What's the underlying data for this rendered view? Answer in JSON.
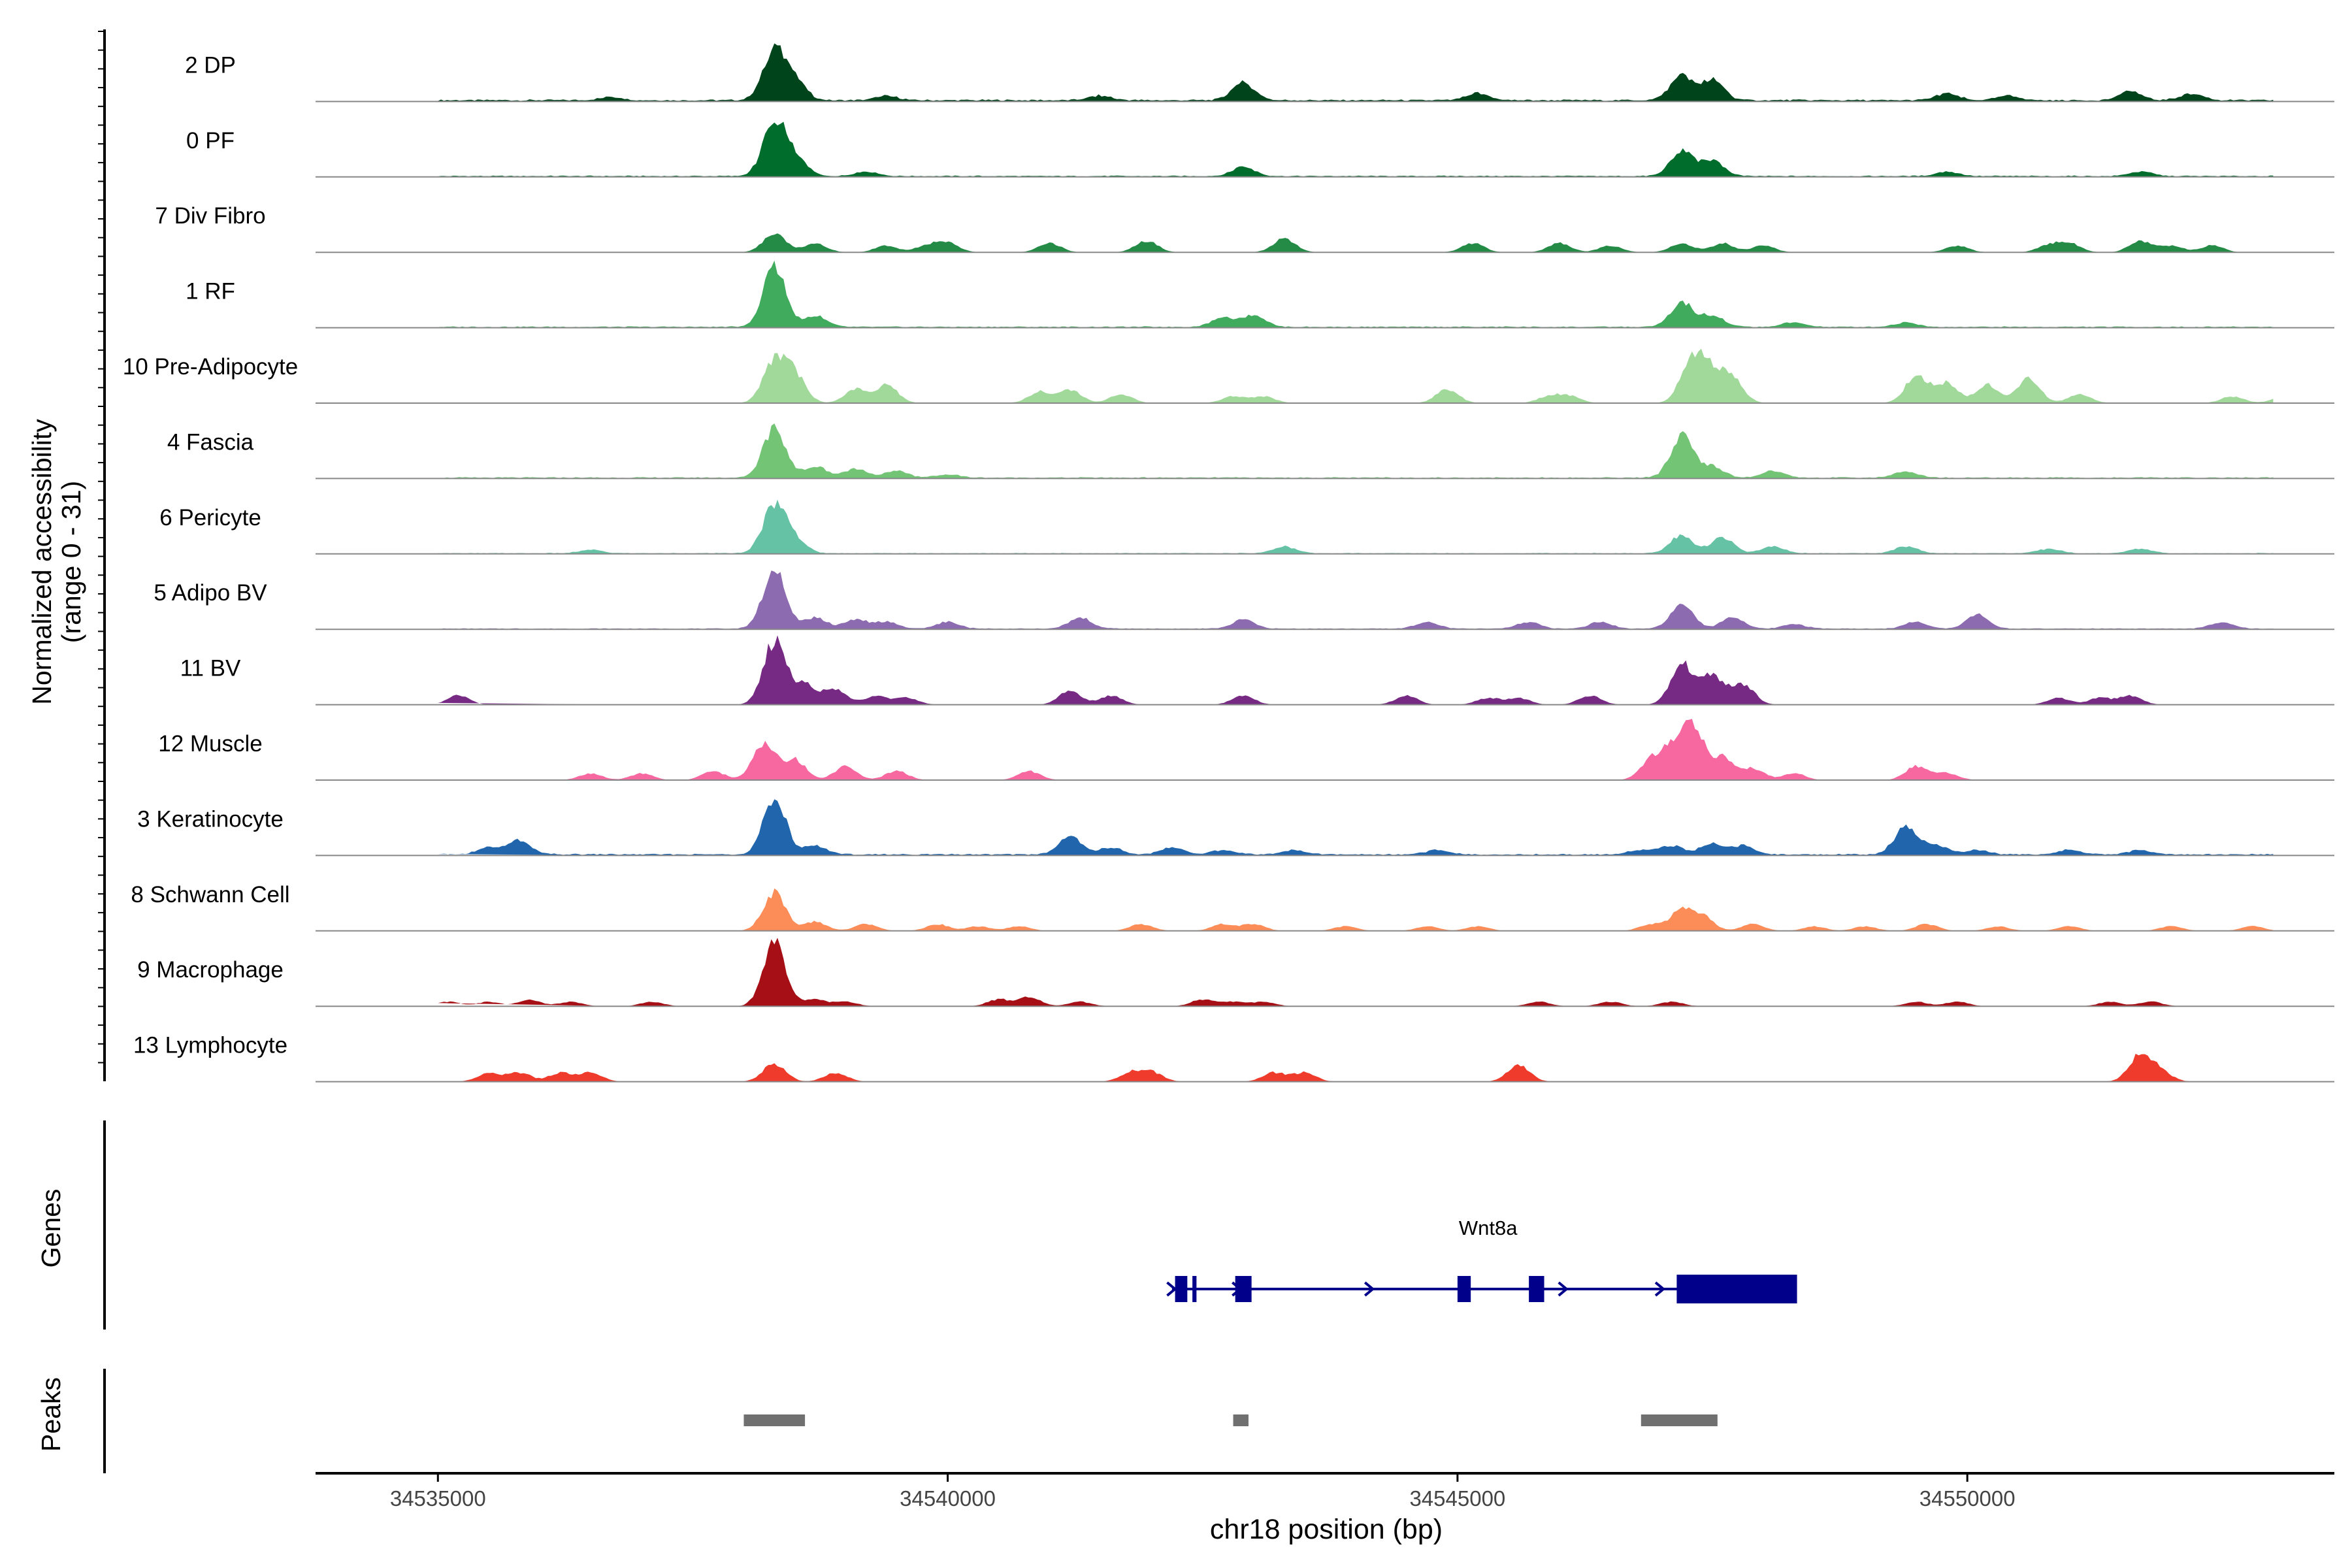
{
  "chart_data": {
    "type": "area",
    "ylabel": [
      "Normalized accessibility",
      "(range 0 - 31)"
    ],
    "ylim": [
      0,
      31
    ],
    "xlabel": "chr18 position (bp)",
    "xlim": [
      34533800,
      34553600
    ],
    "x_ticks": [
      34535000,
      34540000,
      34545000,
      34550000
    ],
    "x_tick_labels": [
      "34535000",
      "34540000",
      "34545000",
      "34550000"
    ],
    "series": [
      {
        "name": "2 DP",
        "color": "#00441b",
        "peaks": [
          [
            34538300,
            22
          ],
          [
            34538500,
            8
          ],
          [
            34542900,
            8
          ],
          [
            34547200,
            11
          ],
          [
            34547500,
            9
          ],
          [
            34545200,
            3
          ],
          [
            34549800,
            3
          ],
          [
            34551600,
            4
          ],
          [
            34552200,
            3
          ],
          [
            34541500,
            2
          ],
          [
            34536700,
            1.5
          ],
          [
            34539400,
            2
          ],
          [
            34550400,
            2
          ]
        ],
        "noise": 0.6
      },
      {
        "name": "0 PF",
        "color": "#006d2c",
        "peaks": [
          [
            34538300,
            24
          ],
          [
            34538500,
            8
          ],
          [
            34542900,
            4
          ],
          [
            34547200,
            11
          ],
          [
            34547500,
            7
          ],
          [
            34549800,
            2
          ],
          [
            34551700,
            2
          ],
          [
            34539200,
            2
          ]
        ],
        "noise": 0.4
      },
      {
        "name": "7 Div Fibro",
        "color": "#238b45",
        "peaks": [
          [
            34538300,
            8
          ],
          [
            34538700,
            4
          ],
          [
            34539400,
            3
          ],
          [
            34539800,
            3
          ],
          [
            34540000,
            4
          ],
          [
            34541000,
            4
          ],
          [
            34541950,
            5
          ],
          [
            34543300,
            6
          ],
          [
            34545150,
            4
          ],
          [
            34546000,
            4
          ],
          [
            34546500,
            3
          ],
          [
            34547200,
            4
          ],
          [
            34547600,
            4
          ],
          [
            34548000,
            3
          ],
          [
            34549900,
            3
          ],
          [
            34550800,
            3
          ],
          [
            34551000,
            4
          ],
          [
            34551700,
            5
          ],
          [
            34552000,
            3
          ],
          [
            34552400,
            3
          ]
        ],
        "noise": 0
      },
      {
        "name": "1 RF",
        "color": "#41ab5d",
        "peaks": [
          [
            34538300,
            27
          ],
          [
            34538700,
            5
          ],
          [
            34542700,
            4
          ],
          [
            34543000,
            5
          ],
          [
            34547200,
            11
          ],
          [
            34547500,
            5
          ],
          [
            34548300,
            2
          ],
          [
            34549400,
            2
          ]
        ],
        "noise": 0.4
      },
      {
        "name": "10 Pre-Adipocyte",
        "color": "#a1d99b",
        "peaks": [
          [
            34538300,
            18
          ],
          [
            34538500,
            12
          ],
          [
            34539100,
            6
          ],
          [
            34539400,
            8
          ],
          [
            34540900,
            5
          ],
          [
            34541200,
            6
          ],
          [
            34541700,
            4
          ],
          [
            34542800,
            3
          ],
          [
            34543100,
            3
          ],
          [
            34544900,
            6
          ],
          [
            34545900,
            3
          ],
          [
            34546100,
            3
          ],
          [
            34547300,
            20
          ],
          [
            34547500,
            12
          ],
          [
            34547700,
            10
          ],
          [
            34549500,
            12
          ],
          [
            34549800,
            9
          ],
          [
            34550200,
            8
          ],
          [
            34550600,
            11
          ],
          [
            34551100,
            4
          ],
          [
            34552600,
            3
          ],
          [
            34553100,
            3
          ]
        ],
        "noise": 0
      },
      {
        "name": "4 Fascia",
        "color": "#74c476",
        "peaks": [
          [
            34538300,
            22
          ],
          [
            34538700,
            5
          ],
          [
            34539100,
            4
          ],
          [
            34539500,
            3
          ],
          [
            34547200,
            18
          ],
          [
            34547500,
            5
          ],
          [
            34548100,
            3
          ],
          [
            34549400,
            3
          ],
          [
            34540000,
            1.5
          ]
        ],
        "noise": 0.4
      },
      {
        "name": "6 Pericyte",
        "color": "#66c2a4",
        "peaks": [
          [
            34538300,
            21
          ],
          [
            34538500,
            6
          ],
          [
            34543300,
            3
          ],
          [
            34547200,
            8
          ],
          [
            34547600,
            7
          ],
          [
            34548100,
            3
          ],
          [
            34549400,
            3
          ],
          [
            34550800,
            2
          ],
          [
            34551700,
            2
          ],
          [
            34536500,
            1.5
          ]
        ],
        "noise": 0.3
      },
      {
        "name": "5 Adipo BV",
        "color": "#8c6bb1",
        "peaks": [
          [
            34538300,
            26
          ],
          [
            34538700,
            5
          ],
          [
            34539100,
            4
          ],
          [
            34539400,
            3
          ],
          [
            34540000,
            3
          ],
          [
            34541300,
            5
          ],
          [
            34542900,
            4
          ],
          [
            34544700,
            3
          ],
          [
            34545700,
            3
          ],
          [
            34546400,
            3
          ],
          [
            34547200,
            11
          ],
          [
            34547700,
            5
          ],
          [
            34548300,
            2
          ],
          [
            34549500,
            3
          ],
          [
            34550100,
            6
          ],
          [
            34552500,
            3
          ]
        ],
        "noise": 0.3
      },
      {
        "name": "11 BV",
        "color": "#762a83",
        "peaks": [
          [
            34535200,
            4
          ],
          [
            34538300,
            28
          ],
          [
            34538600,
            9
          ],
          [
            34538900,
            7
          ],
          [
            34539300,
            4
          ],
          [
            34539600,
            3
          ],
          [
            34541200,
            6
          ],
          [
            34541600,
            4
          ],
          [
            34542900,
            4
          ],
          [
            34544500,
            4
          ],
          [
            34545300,
            3
          ],
          [
            34545600,
            3
          ],
          [
            34546300,
            4
          ],
          [
            34547200,
            18
          ],
          [
            34547500,
            13
          ],
          [
            34547800,
            9
          ],
          [
            34550900,
            3
          ],
          [
            34551300,
            3
          ],
          [
            34551600,
            4
          ]
        ],
        "noise": 0
      },
      {
        "name": "12 Muscle",
        "color": "#f768a1",
        "peaks": [
          [
            34536500,
            3
          ],
          [
            34537000,
            3
          ],
          [
            34537700,
            4
          ],
          [
            34538200,
            16
          ],
          [
            34538500,
            9
          ],
          [
            34539000,
            6
          ],
          [
            34539500,
            4
          ],
          [
            34540800,
            4
          ],
          [
            34546900,
            8
          ],
          [
            34547100,
            12
          ],
          [
            34547300,
            24
          ],
          [
            34547600,
            10
          ],
          [
            34547900,
            5
          ],
          [
            34548300,
            3
          ],
          [
            34549500,
            6
          ],
          [
            34549800,
            3
          ]
        ],
        "noise": 0
      },
      {
        "name": "3 Keratinocyte",
        "color": "#2166ac",
        "peaks": [
          [
            34535800,
            6
          ],
          [
            34535500,
            3
          ],
          [
            34538300,
            25
          ],
          [
            34538700,
            4
          ],
          [
            34541200,
            8
          ],
          [
            34541600,
            3
          ],
          [
            34542200,
            3
          ],
          [
            34542700,
            2
          ],
          [
            34543400,
            2
          ],
          [
            34544800,
            2
          ],
          [
            34546800,
            2
          ],
          [
            34547100,
            4
          ],
          [
            34547500,
            5
          ],
          [
            34547800,
            4
          ],
          [
            34549400,
            13
          ],
          [
            34549700,
            4
          ],
          [
            34550100,
            2
          ],
          [
            34551000,
            2
          ],
          [
            34551700,
            2
          ]
        ],
        "noise": 0.5
      },
      {
        "name": "8 Schwann Cell",
        "color": "#fc8d59",
        "peaks": [
          [
            34538300,
            17
          ],
          [
            34538700,
            4
          ],
          [
            34539200,
            3
          ],
          [
            34539900,
            3
          ],
          [
            34540300,
            2
          ],
          [
            34540700,
            2
          ],
          [
            34541900,
            3
          ],
          [
            34542700,
            3
          ],
          [
            34543000,
            3
          ],
          [
            34543900,
            2
          ],
          [
            34544700,
            2
          ],
          [
            34545200,
            2
          ],
          [
            34546900,
            3
          ],
          [
            34547200,
            9
          ],
          [
            34547400,
            6
          ],
          [
            34547900,
            3
          ],
          [
            34548500,
            2
          ],
          [
            34549000,
            2
          ],
          [
            34549600,
            3
          ],
          [
            34550300,
            2
          ],
          [
            34551000,
            2
          ],
          [
            34552000,
            2
          ],
          [
            34552800,
            2
          ],
          [
            34553300,
            2
          ]
        ],
        "noise": 0
      },
      {
        "name": "9 Macrophage",
        "color": "#a50f15",
        "peaks": [
          [
            34535100,
            2
          ],
          [
            34535500,
            2
          ],
          [
            34535900,
            3
          ],
          [
            34536300,
            2
          ],
          [
            34537100,
            2
          ],
          [
            34538300,
            28
          ],
          [
            34538700,
            3
          ],
          [
            34539000,
            2
          ],
          [
            34540500,
            3
          ],
          [
            34540800,
            4
          ],
          [
            34541300,
            2
          ],
          [
            34542500,
            3
          ],
          [
            34542800,
            2
          ],
          [
            34543100,
            2
          ],
          [
            34545800,
            2
          ],
          [
            34546500,
            2
          ],
          [
            34547100,
            2
          ],
          [
            34549500,
            2
          ],
          [
            34549900,
            2
          ],
          [
            34551400,
            2
          ],
          [
            34551800,
            2
          ]
        ],
        "noise": 0
      },
      {
        "name": "13 Lymphocyte",
        "color": "#ef3b2c",
        "peaks": [
          [
            34535500,
            4
          ],
          [
            34535800,
            4
          ],
          [
            34536200,
            4
          ],
          [
            34536500,
            4
          ],
          [
            34538300,
            8
          ],
          [
            34538900,
            4
          ],
          [
            34541800,
            4
          ],
          [
            34542000,
            4
          ],
          [
            34543200,
            4
          ],
          [
            34543500,
            4
          ],
          [
            34545600,
            7
          ],
          [
            34551700,
            12
          ],
          [
            34551900,
            4
          ]
        ],
        "noise": 0
      }
    ],
    "genes_track": {
      "label": "Genes",
      "gene_name": "Wnt8a",
      "gene_start": 34542200,
      "gene_end": 34548300,
      "strand": "+",
      "exons": [
        [
          34542230,
          34542350
        ],
        [
          34542400,
          34542440
        ],
        [
          34542820,
          34542980
        ],
        [
          34545000,
          34545130
        ],
        [
          34545700,
          34545850
        ],
        [
          34547150,
          34548330
        ]
      ],
      "color": "#00008b"
    },
    "peaks_track": {
      "label": "Peaks",
      "regions": [
        [
          34538000,
          34538600
        ],
        [
          34542800,
          34542950
        ],
        [
          34546800,
          34547550
        ]
      ],
      "color": "#707070"
    }
  }
}
